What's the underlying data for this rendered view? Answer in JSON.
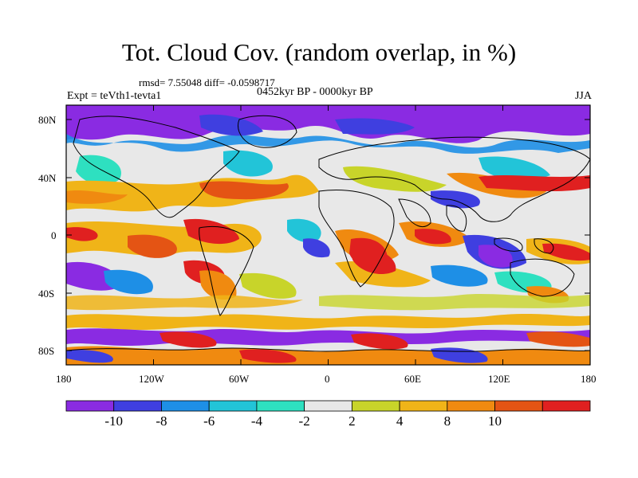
{
  "title": "Tot. Cloud Cov. (random overlap, in %)",
  "stats": "rmsd= 7.55048 diff= -0.0598717",
  "period": "0452kyr BP - 0000kyr BP",
  "experiment": "Expt = teVth1-tevta1",
  "season": "JJA",
  "axes": {
    "lat_ticks": [
      "80N",
      "40N",
      "0",
      "40S",
      "80S"
    ],
    "lon_ticks": [
      "180",
      "120W",
      "60W",
      "0",
      "60E",
      "120E",
      "180"
    ]
  },
  "colorbar": {
    "colors": [
      "#8a2be2",
      "#3f3fe0",
      "#1e8fe6",
      "#22c4d8",
      "#2ee0c0",
      "#e8e8e8",
      "#c8d42a",
      "#f0b418",
      "#f08a10",
      "#e45414",
      "#e02020"
    ],
    "labels": [
      "-10",
      "-8",
      "-6",
      "-4",
      "-2",
      "2",
      "4",
      "8",
      "10"
    ]
  }
}
